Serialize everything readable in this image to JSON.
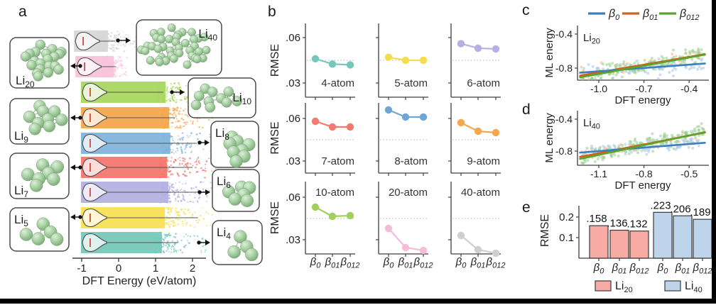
{
  "figure": {
    "letters": {
      "a": "a",
      "b": "b",
      "c": "c",
      "d": "d",
      "e": "e"
    }
  },
  "chart_data": [
    {
      "id": "a",
      "type": "violin-scatter",
      "xlabel": "DFT Energy (eV/atom)",
      "xticks": [
        {
          "label": "-1",
          "v": -1
        },
        {
          "label": "0",
          "v": 0
        },
        {
          "label": "1",
          "v": 1
        },
        {
          "label": "2",
          "v": 2
        }
      ],
      "median_color": "#cf3e36",
      "rows": [
        {
          "name": "Li40",
          "base": "Li",
          "sub": "40",
          "n_atoms": 40,
          "color": "#d7d7d7",
          "band_start": -1.21,
          "solid_end": -0.29,
          "scatter_end": 0.56,
          "tail_end": -0.1,
          "arrow": "right"
        },
        {
          "name": "Li20",
          "base": "Li",
          "sub": "20",
          "n_atoms": 20,
          "color": "#f8c3da",
          "band_start": -1.17,
          "solid_end": -0.13,
          "scatter_end": 0.17,
          "tail_end": -0.08,
          "arrow": "left"
        },
        {
          "name": "Li10",
          "base": "Li",
          "sub": "10",
          "n_atoms": 10,
          "color": "#a8d75f",
          "band_start": -1.02,
          "solid_end": 1.27,
          "scatter_end": 2.5,
          "tail_end": 1.21,
          "arrow": "right"
        },
        {
          "name": "Li9",
          "base": "Li",
          "sub": "9",
          "n_atoms": 9,
          "color": "#f6a74e",
          "band_start": -1.02,
          "solid_end": 1.37,
          "scatter_end": 2.6,
          "tail_end": 1.52,
          "arrow": "left"
        },
        {
          "name": "Li8",
          "base": "Li",
          "sub": "8",
          "n_atoms": 8,
          "color": "#82b4dc",
          "band_start": -1.02,
          "solid_end": 1.4,
          "scatter_end": 2.79,
          "tail_end": 2.12,
          "arrow": "right"
        },
        {
          "name": "Li7",
          "base": "Li",
          "sub": "7",
          "n_atoms": 7,
          "color": "#f4786d",
          "band_start": -1.02,
          "solid_end": 1.31,
          "scatter_end": 2.56,
          "tail_end": 2.0,
          "arrow": "left"
        },
        {
          "name": "Li6",
          "base": "Li",
          "sub": "6",
          "n_atoms": 6,
          "color": "#b6b0e2",
          "band_start": -1.02,
          "solid_end": 1.35,
          "scatter_end": 2.67,
          "tail_end": 2.13,
          "arrow": "right"
        },
        {
          "name": "Li5",
          "base": "Li",
          "sub": "5",
          "n_atoms": 5,
          "color": "#f8e055",
          "band_start": -1.02,
          "solid_end": 1.25,
          "scatter_end": 2.46,
          "tail_end": 2.15,
          "arrow": "left"
        },
        {
          "name": "Li4",
          "base": "Li",
          "sub": "4",
          "n_atoms": 4,
          "color": "#78c9bc",
          "band_start": -1.02,
          "solid_end": 1.17,
          "scatter_end": 2.33,
          "tail_end": 1.6,
          "arrow": "right"
        }
      ]
    },
    {
      "id": "b",
      "type": "line",
      "ylabel": "RMSE",
      "yticks": [
        {
          "label": ".06",
          "v": 0.06
        },
        {
          "label": ".03",
          "v": 0.03
        }
      ],
      "ref_line": 0.045,
      "x_categories": [
        {
          "base": "β",
          "sub": "0"
        },
        {
          "base": "β",
          "sub": "01"
        },
        {
          "base": "β",
          "sub": "012"
        }
      ],
      "subplots": [
        {
          "label": "4-atom",
          "color": "#74c8ba",
          "values": [
            0.046,
            0.0425,
            0.042
          ]
        },
        {
          "label": "5-atom",
          "color": "#f6dd50",
          "values": [
            0.047,
            0.045,
            0.045
          ]
        },
        {
          "label": "6-atom",
          "color": "#b6b0e2",
          "values": [
            0.056,
            0.053,
            0.0525
          ]
        },
        {
          "label": "7-atom",
          "color": "#f4786d",
          "values": [
            0.058,
            0.054,
            0.054
          ]
        },
        {
          "label": "8-atom",
          "color": "#6ea7d6",
          "values": [
            0.066,
            0.061,
            0.061
          ]
        },
        {
          "label": "9-atom",
          "color": "#f6a74e",
          "values": [
            0.057,
            0.051,
            0.05
          ]
        },
        {
          "label": "10-atom",
          "color": "#a0d15e",
          "values": [
            0.053,
            0.0465,
            0.047
          ]
        },
        {
          "label": "20-atom",
          "color": "#f6bcd7",
          "values": [
            0.038,
            0.0245,
            0.0225
          ]
        },
        {
          "label": "40-atom",
          "color": "#cfcfcf",
          "values": [
            0.033,
            0.023,
            0.0205
          ]
        }
      ]
    },
    {
      "id": "c",
      "type": "scatter",
      "annotation": {
        "base": "Li",
        "sub": "20"
      },
      "xlabel": "DFT energy",
      "ylabel": "ML energy",
      "xticks": [
        {
          "label": "-1.0",
          "v": -1.0
        },
        {
          "label": "-0.7",
          "v": -0.7
        },
        {
          "label": "-0.4",
          "v": -0.4
        }
      ],
      "yticks": [
        {
          "label": "-0.4",
          "v": -0.4
        },
        {
          "label": "-0.8",
          "v": -0.8
        }
      ],
      "legend": [
        {
          "base": "β",
          "sub": "0",
          "color": "#3c7ec0"
        },
        {
          "base": "β",
          "sub": "01",
          "color": "#d2601e"
        },
        {
          "base": "β",
          "sub": "012",
          "color": "#5ba32b"
        }
      ],
      "fit_lines": [
        {
          "name": "β0",
          "color": "#3c7ec0",
          "x": [
            -1.13,
            -0.29
          ],
          "y": [
            -0.855,
            -0.745
          ]
        },
        {
          "name": "β01",
          "color": "#d2601e",
          "x": [
            -1.13,
            -0.29
          ],
          "y": [
            -0.89,
            -0.635
          ]
        },
        {
          "name": "β012",
          "color": "#5ba32b",
          "x": [
            -1.13,
            -0.29
          ],
          "y": [
            -0.91,
            -0.64
          ]
        }
      ],
      "scatter_series": [
        {
          "name": "β0",
          "color": "#a9c7e6",
          "n": 100,
          "sigma": 0.04,
          "follow": 0
        },
        {
          "name": "β01",
          "color": "#f3b67f",
          "n": 30,
          "sigma": 0.04,
          "follow": 1
        },
        {
          "name": "β012",
          "color": "#97cd8e",
          "n": 170,
          "sigma": 0.042,
          "follow": 2
        }
      ],
      "x_range": [
        -1.12,
        -0.3
      ]
    },
    {
      "id": "d",
      "type": "scatter",
      "annotation": {
        "base": "Li",
        "sub": "40"
      },
      "xlabel": "DFT energy",
      "ylabel": "ML energy",
      "xticks": [
        {
          "label": "-1.1",
          "v": -1.1
        },
        {
          "label": "-0.8",
          "v": -0.8
        },
        {
          "label": "-0.5",
          "v": -0.5
        }
      ],
      "yticks": [
        {
          "label": "-0.4",
          "v": -0.4
        },
        {
          "label": "-0.8",
          "v": -0.8
        }
      ],
      "fit_lines": [
        {
          "name": "β0",
          "color": "#3c7ec0",
          "x": [
            -1.23,
            -0.39
          ],
          "y": [
            -0.82,
            -0.695
          ]
        },
        {
          "name": "β01",
          "color": "#d2601e",
          "x": [
            -1.23,
            -0.39
          ],
          "y": [
            -0.875,
            -0.565
          ]
        },
        {
          "name": "β012",
          "color": "#5ba32b",
          "x": [
            -1.23,
            -0.39
          ],
          "y": [
            -0.9,
            -0.56
          ]
        }
      ],
      "scatter_series": [
        {
          "name": "β0",
          "color": "#a9c7e6",
          "n": 100,
          "sigma": 0.04,
          "follow": 0
        },
        {
          "name": "β01",
          "color": "#f3b67f",
          "n": 30,
          "sigma": 0.04,
          "follow": 1
        },
        {
          "name": "β012",
          "color": "#97cd8e",
          "n": 170,
          "sigma": 0.042,
          "follow": 2
        }
      ],
      "x_range": [
        -1.22,
        -0.4
      ]
    },
    {
      "id": "e",
      "type": "bar",
      "ylabel": "RMSE",
      "yticks": [
        {
          "label": "0.2",
          "v": 0.2
        },
        {
          "label": "0.1",
          "v": 0.1
        }
      ],
      "x_categories": [
        {
          "base": "β",
          "sub": "0"
        },
        {
          "base": "β",
          "sub": "01"
        },
        {
          "base": "β",
          "sub": "012"
        },
        {
          "base": "β",
          "sub": "0"
        },
        {
          "base": "β",
          "sub": "01"
        },
        {
          "base": "β",
          "sub": "012"
        }
      ],
      "groups": [
        {
          "label": {
            "base": "Li",
            "sub": "20"
          },
          "color": "#f7aba4",
          "edge": "#3a3a3a",
          "values": [
            0.158,
            0.136,
            0.132
          ],
          "value_labels": [
            ".158",
            ".136",
            ".132"
          ]
        },
        {
          "label": {
            "base": "Li",
            "sub": "40"
          },
          "color": "#bdd4ea",
          "edge": "#3a3a3a",
          "values": [
            0.223,
            0.206,
            0.189
          ],
          "value_labels": [
            ".223",
            ".206",
            ".189"
          ]
        }
      ]
    }
  ]
}
